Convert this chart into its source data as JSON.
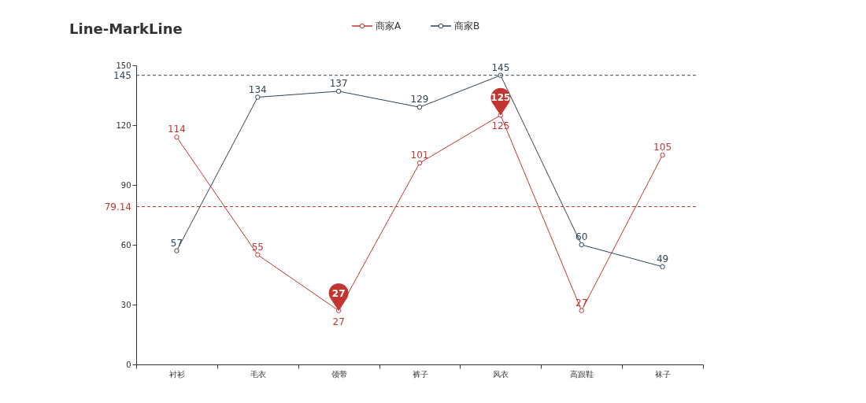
{
  "chart_data": {
    "type": "line",
    "title": "Line-MarkLine",
    "categories": [
      "衬衫",
      "毛衣",
      "领带",
      "裤子",
      "风衣",
      "高跟鞋",
      "袜子"
    ],
    "series": [
      {
        "name": "商家A",
        "color": "#c23531",
        "values": [
          114,
          55,
          27,
          101,
          125,
          27,
          105
        ]
      },
      {
        "name": "商家B",
        "color": "#2f4554",
        "values": [
          57,
          134,
          137,
          129,
          145,
          60,
          49
        ]
      }
    ],
    "ylim": [
      0,
      150
    ],
    "yticks": [
      0,
      30,
      60,
      90,
      120,
      150
    ],
    "ref_lines": [
      {
        "axis": "y",
        "value": 145,
        "label": "145",
        "color": "#2f4554",
        "line_style": "dashed"
      },
      {
        "axis": "y",
        "value": 79.14,
        "label": "79.14",
        "color": "#c23531",
        "line_style": "dashed"
      }
    ],
    "annotations": [
      {
        "text": "27",
        "x": "领带",
        "y": 27
      },
      {
        "text": "125",
        "x": "风衣",
        "y": 125
      }
    ],
    "data_labels": true,
    "marker": "circle",
    "line_style": "solid",
    "grid": false,
    "legend": "top"
  }
}
